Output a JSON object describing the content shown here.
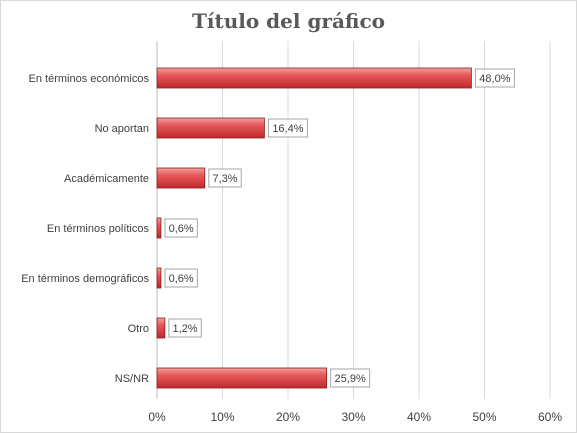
{
  "chart_data": {
    "type": "bar",
    "orientation": "horizontal",
    "title": "Título del gráfico",
    "xlabel": "",
    "ylabel": "",
    "categories": [
      "En términos económicos",
      "No aportan",
      "Académicamente",
      "En términos políticos",
      "En términos demográficos",
      "Otro",
      "NS/NR"
    ],
    "values": [
      48.0,
      16.4,
      7.3,
      0.6,
      0.6,
      1.2,
      25.9
    ],
    "data_labels": [
      "48,0%",
      "16,4%",
      "7,3%",
      "0,6%",
      "0,6%",
      "1,2%",
      "25,9%"
    ],
    "xlim": [
      0,
      60
    ],
    "x_ticks": [
      0,
      10,
      20,
      30,
      40,
      50,
      60
    ],
    "x_tick_labels": [
      "0%",
      "10%",
      "20%",
      "30%",
      "40%",
      "50%",
      "60%"
    ],
    "grid": "vertical",
    "legend": "none",
    "colors": {
      "bar_light": "#f2a0a0",
      "bar_dark": "#c0282b",
      "bar_border": "#8a1d1f",
      "grid": "#d9d9d9",
      "text": "#404040",
      "label_border": "#a6a6a6"
    }
  }
}
